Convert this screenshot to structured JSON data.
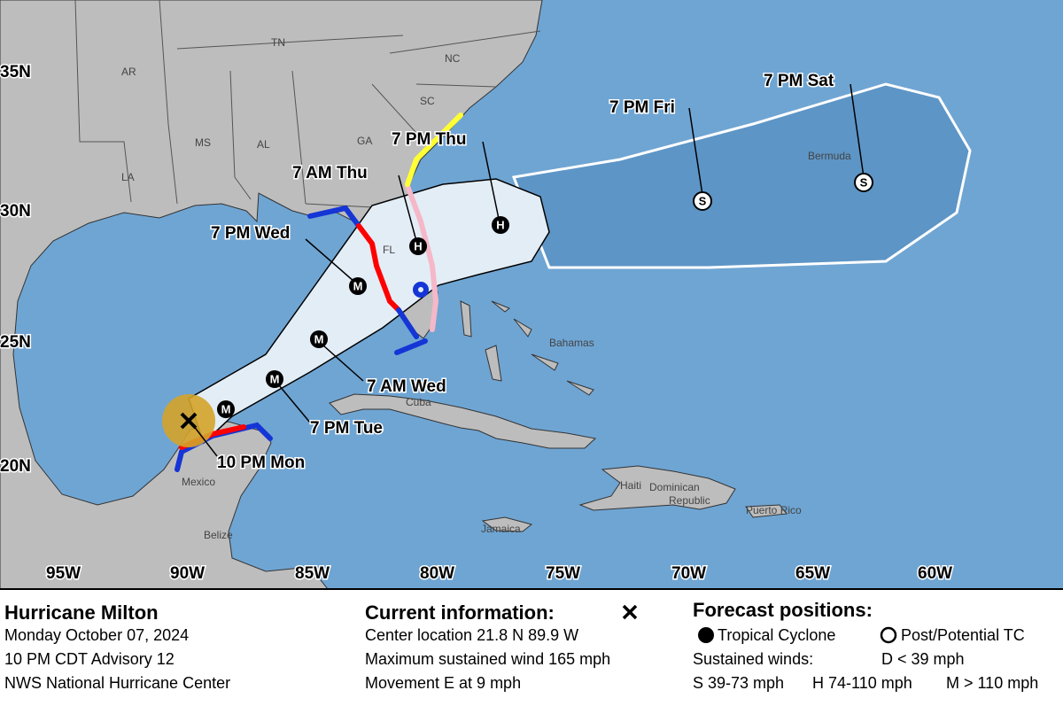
{
  "map": {
    "latitude_labels": [
      "35N",
      "30N",
      "25N",
      "20N"
    ],
    "longitude_labels": [
      "95W",
      "90W",
      "85W",
      "80W",
      "75W",
      "70W",
      "65W",
      "60W"
    ],
    "region_labels": [
      "AR",
      "TN",
      "NC",
      "SC",
      "MS",
      "AL",
      "GA",
      "LA",
      "FL",
      "Bermuda",
      "Bahamas",
      "Cuba",
      "Haiti",
      "Dominican",
      "Republic",
      "Puerto Rico",
      "Jamaica",
      "Mexico",
      "Belize"
    ],
    "forecast_times": [
      "7 PM Sat",
      "7 PM Fri",
      "7 PM Thu",
      "7 AM Thu",
      "7 PM Wed",
      "7 AM Wed",
      "7 PM Tue",
      "10 PM Mon"
    ],
    "positions": [
      {
        "symbol": "M"
      },
      {
        "symbol": "M"
      },
      {
        "symbol": "M"
      },
      {
        "symbol": "M"
      },
      {
        "symbol": "H"
      },
      {
        "symbol": "H"
      },
      {
        "symbol": "S"
      },
      {
        "symbol": "S"
      }
    ]
  },
  "info": {
    "storm": {
      "title": "Hurricane Milton",
      "date": "Monday October 07, 2024",
      "advisory": "10 PM CDT Advisory 12",
      "source": "NWS National Hurricane Center"
    },
    "current": {
      "heading": "Current information:",
      "location": "Center location 21.8 N 89.9 W",
      "wind": "Maximum sustained wind 165 mph",
      "movement": "Movement E at 9 mph"
    },
    "forecast": {
      "heading": "Forecast positions:",
      "tropical": "Tropical Cyclone",
      "post": "Post/Potential TC",
      "winds": "Sustained winds:",
      "d": "D < 39 mph",
      "s": "S 39-73 mph",
      "h": "H 74-110 mph",
      "m": "M > 110 mph"
    }
  }
}
